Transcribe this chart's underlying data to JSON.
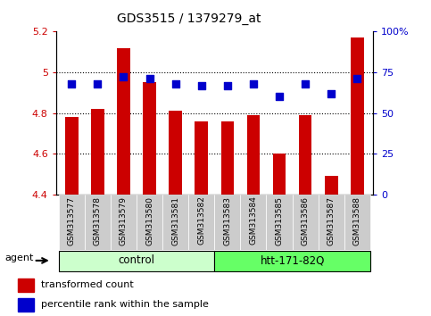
{
  "title": "GDS3515 / 1379279_at",
  "samples": [
    "GSM313577",
    "GSM313578",
    "GSM313579",
    "GSM313580",
    "GSM313581",
    "GSM313582",
    "GSM313583",
    "GSM313584",
    "GSM313585",
    "GSM313586",
    "GSM313587",
    "GSM313588"
  ],
  "red_values": [
    4.78,
    4.82,
    5.12,
    4.95,
    4.81,
    4.76,
    4.76,
    4.79,
    4.6,
    4.79,
    4.49,
    5.17
  ],
  "percentile_ranks": [
    68,
    68,
    72,
    71,
    68,
    67,
    67,
    68,
    60,
    68,
    62,
    71
  ],
  "ylim_left": [
    4.4,
    5.2
  ],
  "ylim_right": [
    0,
    100
  ],
  "right_ticks": [
    0,
    25,
    50,
    75,
    100
  ],
  "right_tick_labels": [
    "0",
    "25",
    "50",
    "75",
    "100%"
  ],
  "left_ticks": [
    4.4,
    4.6,
    4.8,
    5.0,
    5.2
  ],
  "left_tick_labels": [
    "4.4",
    "4.6",
    "4.8",
    "5",
    "5.2"
  ],
  "groups": [
    {
      "label": "control",
      "start": 0,
      "end": 5,
      "color": "#ccffcc"
    },
    {
      "label": "htt-171-82Q",
      "start": 6,
      "end": 11,
      "color": "#66ff66"
    }
  ],
  "agent_label": "agent",
  "legend_red": "transformed count",
  "legend_blue": "percentile rank within the sample",
  "bar_color": "#cc0000",
  "dot_color": "#0000cc",
  "grid_color": "#000000",
  "title_color": "#000000",
  "left_axis_color": "#cc0000",
  "right_axis_color": "#0000cc",
  "bar_width": 0.5,
  "bar_bottom": 4.4,
  "dot_size": 30,
  "xtick_bg_color": "#cccccc",
  "group_border_color": "#000000",
  "fig_bg_color": "#ffffff"
}
